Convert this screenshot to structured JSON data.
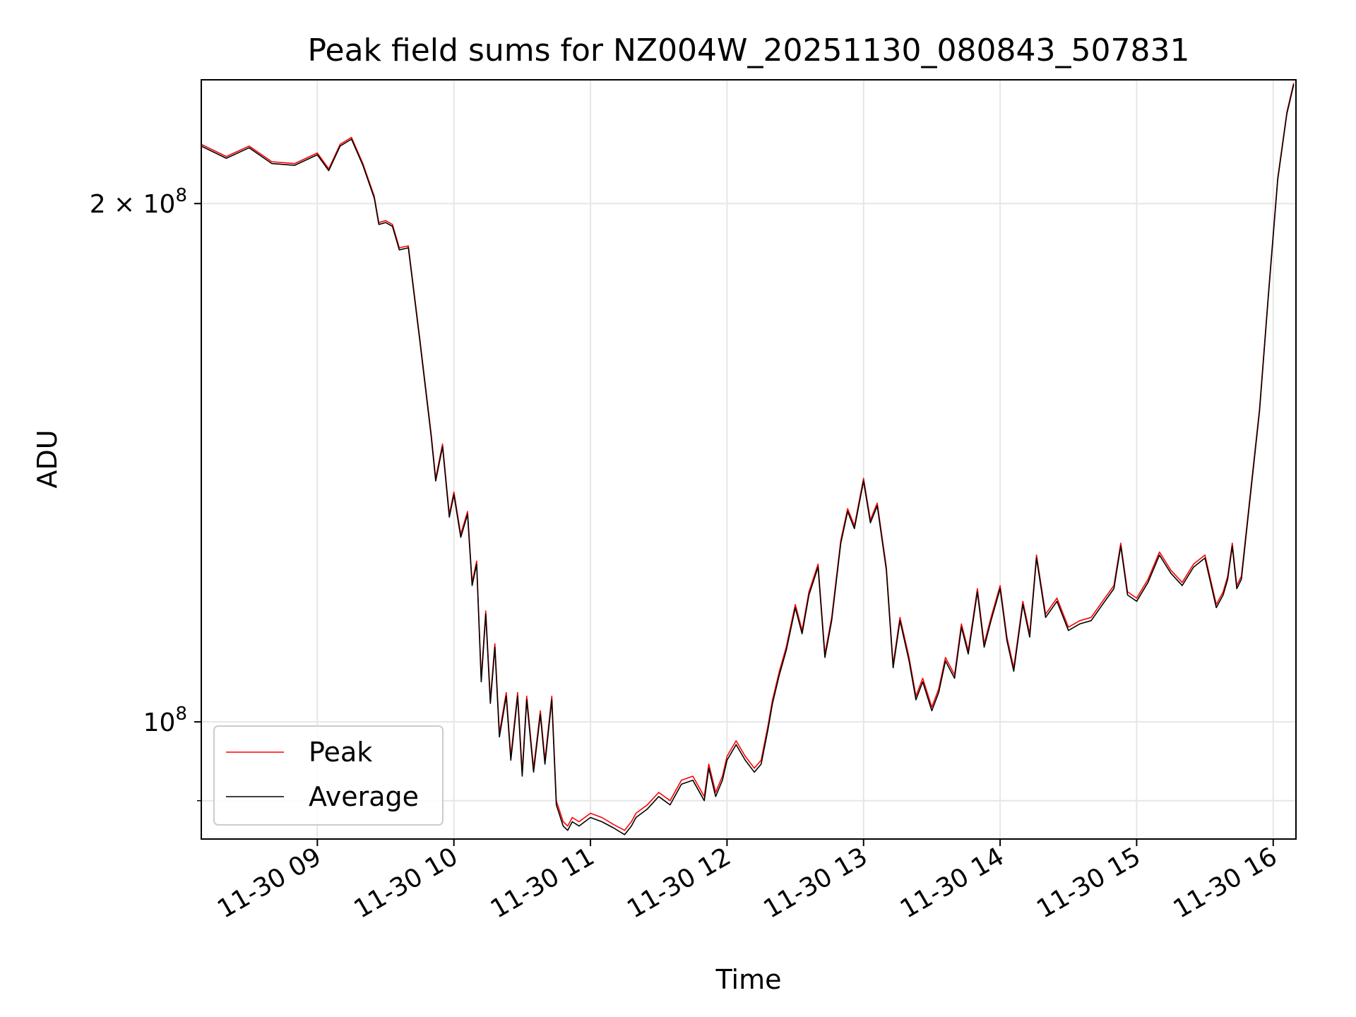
{
  "chart_data": {
    "type": "line",
    "title": "Peak field sums for NZ004W_20251130_080843_507831",
    "xlabel": "Time",
    "ylabel": "ADU",
    "y_scale": "log",
    "ylim": [
      85500000,
      236000000
    ],
    "xlim": [
      "2025-11-30 08:09",
      "2025-11-30 16:10"
    ],
    "x_ticks": [
      "2025-11-30 09:00",
      "2025-11-30 10:00",
      "2025-11-30 11:00",
      "2025-11-30 12:00",
      "2025-11-30 13:00",
      "2025-11-30 14:00",
      "2025-11-30 15:00",
      "2025-11-30 16:00"
    ],
    "x_tick_labels": [
      "11-30 09",
      "11-30 10",
      "11-30 11",
      "11-30 12",
      "11-30 13",
      "11-30 14",
      "11-30 15",
      "11-30 16"
    ],
    "y_major_ticks": [
      {
        "value": 100000000,
        "base": "10",
        "exp": "8"
      },
      {
        "value": 200000000,
        "base": "2 × 10",
        "exp": "8"
      }
    ],
    "y_minor_ticks": [
      90000000
    ],
    "grid": true,
    "legend": "lower-left",
    "series": [
      {
        "name": "Peak",
        "color": "#ff0000",
        "x": [
          "2025-11-30 08:09",
          "2025-11-30 08:20",
          "2025-11-30 08:30",
          "2025-11-30 08:40",
          "2025-11-30 08:50",
          "2025-11-30 09:00",
          "2025-11-30 09:05",
          "2025-11-30 09:10",
          "2025-11-30 09:15",
          "2025-11-30 09:20",
          "2025-11-30 09:25",
          "2025-11-30 09:27",
          "2025-11-30 09:30",
          "2025-11-30 09:33",
          "2025-11-30 09:36",
          "2025-11-30 09:40",
          "2025-11-30 09:45",
          "2025-11-30 09:50",
          "2025-11-30 09:52",
          "2025-11-30 09:55",
          "2025-11-30 09:58",
          "2025-11-30 10:00",
          "2025-11-30 10:03",
          "2025-11-30 10:06",
          "2025-11-30 10:08",
          "2025-11-30 10:10",
          "2025-11-30 10:12",
          "2025-11-30 10:14",
          "2025-11-30 10:16",
          "2025-11-30 10:18",
          "2025-11-30 10:20",
          "2025-11-30 10:23",
          "2025-11-30 10:25",
          "2025-11-30 10:28",
          "2025-11-30 10:30",
          "2025-11-30 10:32",
          "2025-11-30 10:35",
          "2025-11-30 10:38",
          "2025-11-30 10:40",
          "2025-11-30 10:43",
          "2025-11-30 10:45",
          "2025-11-30 10:48",
          "2025-11-30 10:50",
          "2025-11-30 10:52",
          "2025-11-30 10:55",
          "2025-11-30 11:00",
          "2025-11-30 11:05",
          "2025-11-30 11:10",
          "2025-11-30 11:15",
          "2025-11-30 11:18",
          "2025-11-30 11:20",
          "2025-11-30 11:25",
          "2025-11-30 11:30",
          "2025-11-30 11:35",
          "2025-11-30 11:40",
          "2025-11-30 11:45",
          "2025-11-30 11:50",
          "2025-11-30 11:52",
          "2025-11-30 11:55",
          "2025-11-30 11:58",
          "2025-11-30 12:00",
          "2025-11-30 12:04",
          "2025-11-30 12:08",
          "2025-11-30 12:12",
          "2025-11-30 12:15",
          "2025-11-30 12:18",
          "2025-11-30 12:20",
          "2025-11-30 12:23",
          "2025-11-30 12:26",
          "2025-11-30 12:30",
          "2025-11-30 12:33",
          "2025-11-30 12:36",
          "2025-11-30 12:40",
          "2025-11-30 12:43",
          "2025-11-30 12:46",
          "2025-11-30 12:50",
          "2025-11-30 12:53",
          "2025-11-30 12:56",
          "2025-11-30 13:00",
          "2025-11-30 13:03",
          "2025-11-30 13:06",
          "2025-11-30 13:10",
          "2025-11-30 13:13",
          "2025-11-30 13:16",
          "2025-11-30 13:20",
          "2025-11-30 13:23",
          "2025-11-30 13:26",
          "2025-11-30 13:30",
          "2025-11-30 13:33",
          "2025-11-30 13:36",
          "2025-11-30 13:40",
          "2025-11-30 13:43",
          "2025-11-30 13:46",
          "2025-11-30 13:50",
          "2025-11-30 13:53",
          "2025-11-30 13:56",
          "2025-11-30 14:00",
          "2025-11-30 14:03",
          "2025-11-30 14:06",
          "2025-11-30 14:10",
          "2025-11-30 14:13",
          "2025-11-30 14:16",
          "2025-11-30 14:20",
          "2025-11-30 14:25",
          "2025-11-30 14:30",
          "2025-11-30 14:35",
          "2025-11-30 14:40",
          "2025-11-30 14:45",
          "2025-11-30 14:50",
          "2025-11-30 14:53",
          "2025-11-30 14:56",
          "2025-11-30 15:00",
          "2025-11-30 15:05",
          "2025-11-30 15:10",
          "2025-11-30 15:15",
          "2025-11-30 15:20",
          "2025-11-30 15:25",
          "2025-11-30 15:30",
          "2025-11-30 15:35",
          "2025-11-30 15:38",
          "2025-11-30 15:40",
          "2025-11-30 15:42",
          "2025-11-30 15:44",
          "2025-11-30 15:46",
          "2025-11-30 15:50",
          "2025-11-30 15:54",
          "2025-11-30 15:58",
          "2025-11-30 16:02",
          "2025-11-30 16:06",
          "2025-11-30 16:09"
        ],
        "values": [
          216500000,
          213000000,
          216000000,
          211500000,
          211000000,
          214000000,
          209500000,
          216500000,
          218500000,
          211000000,
          202000000,
          195000000,
          195500000,
          194500000,
          188500000,
          189000000,
          167000000,
          147000000,
          138500000,
          145000000,
          132000000,
          136000000,
          128500000,
          132500000,
          120500000,
          124000000,
          106000000,
          116000000,
          103000000,
          111000000,
          98500000,
          104000000,
          95500000,
          104000000,
          93500000,
          103500000,
          94000000,
          101500000,
          95000000,
          103500000,
          90000000,
          87500000,
          87000000,
          88000000,
          87500000,
          88500000,
          88000000,
          87200000,
          86500000,
          87500000,
          88500000,
          89500000,
          91000000,
          90000000,
          92500000,
          93000000,
          90500000,
          94500000,
          91000000,
          93000000,
          95500000,
          97500000,
          95500000,
          94000000,
          95000000,
          99500000,
          103000000,
          107000000,
          110500000,
          117000000,
          113000000,
          119000000,
          123500000,
          109500000,
          115000000,
          127500000,
          133000000,
          130000000,
          138500000,
          131000000,
          134000000,
          123000000,
          108000000,
          115000000,
          109000000,
          103500000,
          106000000,
          102000000,
          104500000,
          109000000,
          106500000,
          114000000,
          110000000,
          119500000,
          111000000,
          115000000,
          120000000,
          112000000,
          107500000,
          117500000,
          112500000,
          125000000,
          115500000,
          118000000,
          113500000,
          114500000,
          115000000,
          117500000,
          120000000,
          127000000,
          119000000,
          118000000,
          121000000,
          125500000,
          122500000,
          120500000,
          123500000,
          125000000,
          117000000,
          119000000,
          121500000,
          127000000,
          120000000,
          121500000,
          136000000,
          152000000,
          178000000,
          207000000,
          226000000,
          235000000
        ]
      },
      {
        "name": "Average",
        "color": "#000000",
        "x": [
          "2025-11-30 08:09",
          "2025-11-30 08:20",
          "2025-11-30 08:30",
          "2025-11-30 08:40",
          "2025-11-30 08:50",
          "2025-11-30 09:00",
          "2025-11-30 09:05",
          "2025-11-30 09:10",
          "2025-11-30 09:15",
          "2025-11-30 09:20",
          "2025-11-30 09:25",
          "2025-11-30 09:27",
          "2025-11-30 09:30",
          "2025-11-30 09:33",
          "2025-11-30 09:36",
          "2025-11-30 09:40",
          "2025-11-30 09:45",
          "2025-11-30 09:50",
          "2025-11-30 09:52",
          "2025-11-30 09:55",
          "2025-11-30 09:58",
          "2025-11-30 10:00",
          "2025-11-30 10:03",
          "2025-11-30 10:06",
          "2025-11-30 10:08",
          "2025-11-30 10:10",
          "2025-11-30 10:12",
          "2025-11-30 10:14",
          "2025-11-30 10:16",
          "2025-11-30 10:18",
          "2025-11-30 10:20",
          "2025-11-30 10:23",
          "2025-11-30 10:25",
          "2025-11-30 10:28",
          "2025-11-30 10:30",
          "2025-11-30 10:32",
          "2025-11-30 10:35",
          "2025-11-30 10:38",
          "2025-11-30 10:40",
          "2025-11-30 10:43",
          "2025-11-30 10:45",
          "2025-11-30 10:48",
          "2025-11-30 10:50",
          "2025-11-30 10:52",
          "2025-11-30 10:55",
          "2025-11-30 11:00",
          "2025-11-30 11:05",
          "2025-11-30 11:10",
          "2025-11-30 11:15",
          "2025-11-30 11:18",
          "2025-11-30 11:20",
          "2025-11-30 11:25",
          "2025-11-30 11:30",
          "2025-11-30 11:35",
          "2025-11-30 11:40",
          "2025-11-30 11:45",
          "2025-11-30 11:50",
          "2025-11-30 11:52",
          "2025-11-30 11:55",
          "2025-11-30 11:58",
          "2025-11-30 12:00",
          "2025-11-30 12:04",
          "2025-11-30 12:08",
          "2025-11-30 12:12",
          "2025-11-30 12:15",
          "2025-11-30 12:18",
          "2025-11-30 12:20",
          "2025-11-30 12:23",
          "2025-11-30 12:26",
          "2025-11-30 12:30",
          "2025-11-30 12:33",
          "2025-11-30 12:36",
          "2025-11-30 12:40",
          "2025-11-30 12:43",
          "2025-11-30 12:46",
          "2025-11-30 12:50",
          "2025-11-30 12:53",
          "2025-11-30 12:56",
          "2025-11-30 13:00",
          "2025-11-30 13:03",
          "2025-11-30 13:06",
          "2025-11-30 13:10",
          "2025-11-30 13:13",
          "2025-11-30 13:16",
          "2025-11-30 13:20",
          "2025-11-30 13:23",
          "2025-11-30 13:26",
          "2025-11-30 13:30",
          "2025-11-30 13:33",
          "2025-11-30 13:36",
          "2025-11-30 13:40",
          "2025-11-30 13:43",
          "2025-11-30 13:46",
          "2025-11-30 13:50",
          "2025-11-30 13:53",
          "2025-11-30 13:56",
          "2025-11-30 14:00",
          "2025-11-30 14:03",
          "2025-11-30 14:06",
          "2025-11-30 14:10",
          "2025-11-30 14:13",
          "2025-11-30 14:16",
          "2025-11-30 14:20",
          "2025-11-30 14:25",
          "2025-11-30 14:30",
          "2025-11-30 14:35",
          "2025-11-30 14:40",
          "2025-11-30 14:45",
          "2025-11-30 14:50",
          "2025-11-30 14:53",
          "2025-11-30 14:56",
          "2025-11-30 15:00",
          "2025-11-30 15:05",
          "2025-11-30 15:10",
          "2025-11-30 15:15",
          "2025-11-30 15:20",
          "2025-11-30 15:25",
          "2025-11-30 15:30",
          "2025-11-30 15:35",
          "2025-11-30 15:38",
          "2025-11-30 15:40",
          "2025-11-30 15:42",
          "2025-11-30 15:44",
          "2025-11-30 15:46",
          "2025-11-30 15:50",
          "2025-11-30 15:54",
          "2025-11-30 15:58",
          "2025-11-30 16:02",
          "2025-11-30 16:06",
          "2025-11-30 16:09"
        ],
        "values": [
          216000000,
          212500000,
          215500000,
          211000000,
          210500000,
          213500000,
          209000000,
          216000000,
          218000000,
          210500000,
          201500000,
          194500000,
          195000000,
          194000000,
          188000000,
          188500000,
          166500000,
          146500000,
          138000000,
          144500000,
          131500000,
          135500000,
          128000000,
          132000000,
          120000000,
          123500000,
          105500000,
          115500000,
          102500000,
          110500000,
          98000000,
          103500000,
          95000000,
          103500000,
          93000000,
          103000000,
          93500000,
          101000000,
          94500000,
          103000000,
          89500000,
          87000000,
          86500000,
          87500000,
          87000000,
          88000000,
          87500000,
          86800000,
          86000000,
          87000000,
          88000000,
          89000000,
          90500000,
          89500000,
          92000000,
          92500000,
          90000000,
          94000000,
          90500000,
          92500000,
          95000000,
          97000000,
          95000000,
          93500000,
          94500000,
          99000000,
          102500000,
          106500000,
          110000000,
          116500000,
          112500000,
          118500000,
          123000000,
          109000000,
          114500000,
          127000000,
          132500000,
          129500000,
          138000000,
          130500000,
          133500000,
          122500000,
          107500000,
          114500000,
          108500000,
          103000000,
          105500000,
          101500000,
          104000000,
          108500000,
          106000000,
          113500000,
          109500000,
          119000000,
          110500000,
          114500000,
          119500000,
          111500000,
          107000000,
          117000000,
          112000000,
          124500000,
          115000000,
          117500000,
          113000000,
          114000000,
          114500000,
          117000000,
          119500000,
          126500000,
          118500000,
          117500000,
          120500000,
          125000000,
          122000000,
          120000000,
          123000000,
          124500000,
          116500000,
          118500000,
          121000000,
          126500000,
          119500000,
          121000000,
          135500000,
          151500000,
          177500000,
          206500000,
          225500000,
          234500000
        ]
      }
    ]
  }
}
